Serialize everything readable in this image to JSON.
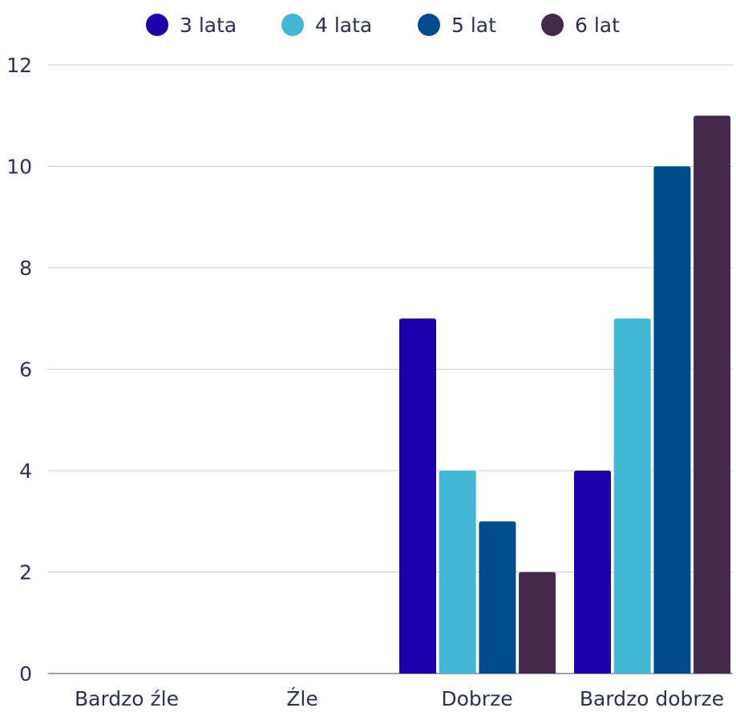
{
  "chart_data": {
    "type": "bar",
    "categories": [
      "Bardzo źle",
      "Źle",
      "Dobrze",
      "Bardzo dobrze"
    ],
    "series": [
      {
        "name": "3 lata",
        "color": "#1B00AA",
        "values": [
          0,
          0,
          7,
          4
        ]
      },
      {
        "name": "4 lata",
        "color": "#41B8D5",
        "values": [
          0,
          0,
          4,
          7
        ]
      },
      {
        "name": "5 lat",
        "color": "#004A8E",
        "values": [
          0,
          0,
          3,
          10
        ]
      },
      {
        "name": "6 lat",
        "color": "#432A4C",
        "values": [
          0,
          0,
          2,
          11
        ]
      }
    ],
    "yticks": [
      "0",
      "2",
      "4",
      "6",
      "8",
      "10",
      "12"
    ],
    "ylim": [
      0,
      12
    ],
    "grid": true,
    "legend_position": "top"
  }
}
